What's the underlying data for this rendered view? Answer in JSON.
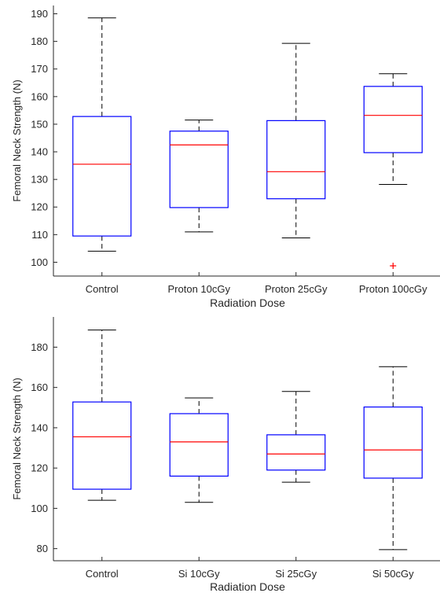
{
  "chart_data": [
    {
      "type": "box",
      "xlabel": "Radiation Dose",
      "ylabel": "Femoral Neck Strength (N)",
      "ylim": [
        95,
        193
      ],
      "yticks": [
        100,
        110,
        120,
        130,
        140,
        150,
        160,
        170,
        180,
        190
      ],
      "grid": false,
      "categories": [
        "Control",
        "Proton 10cGy",
        "Proton 25cGy",
        "Proton 100cGy"
      ],
      "boxes": [
        {
          "min": 104,
          "q1": 109.5,
          "median": 135.5,
          "q3": 152.8,
          "max": 188.5,
          "outliers": []
        },
        {
          "min": 111,
          "q1": 119.8,
          "median": 142.5,
          "q3": 147.5,
          "max": 151.5,
          "outliers": []
        },
        {
          "min": 108.8,
          "q1": 123,
          "median": 132.8,
          "q3": 151.3,
          "max": 179.3,
          "outliers": []
        },
        {
          "min": 128.2,
          "q1": 139.7,
          "median": 153.2,
          "q3": 163.7,
          "max": 168.3,
          "outliers": [
            98.7
          ]
        }
      ],
      "colors": {
        "box": "#0000ff",
        "median": "#ff0000",
        "whisker": "#000000",
        "outlier": "#ff0000"
      }
    },
    {
      "type": "box",
      "xlabel": "Radiation Dose",
      "ylabel": "Femoral Neck Strength (N)",
      "ylim": [
        74,
        195
      ],
      "yticks": [
        80,
        100,
        120,
        140,
        160,
        180
      ],
      "grid": false,
      "categories": [
        "Control",
        "Si 10cGy",
        "Si 25cGy",
        "Si 50cGy"
      ],
      "boxes": [
        {
          "min": 104,
          "q1": 109.5,
          "median": 135.5,
          "q3": 152.8,
          "max": 188.5,
          "outliers": []
        },
        {
          "min": 103,
          "q1": 116,
          "median": 133,
          "q3": 147,
          "max": 154.8,
          "outliers": []
        },
        {
          "min": 113,
          "q1": 119,
          "median": 127,
          "q3": 136.5,
          "max": 158,
          "outliers": []
        },
        {
          "min": 79.5,
          "q1": 115,
          "median": 129,
          "q3": 150.3,
          "max": 170.3,
          "outliers": []
        }
      ],
      "colors": {
        "box": "#0000ff",
        "median": "#ff0000",
        "whisker": "#000000",
        "outlier": "#ff0000"
      }
    }
  ]
}
